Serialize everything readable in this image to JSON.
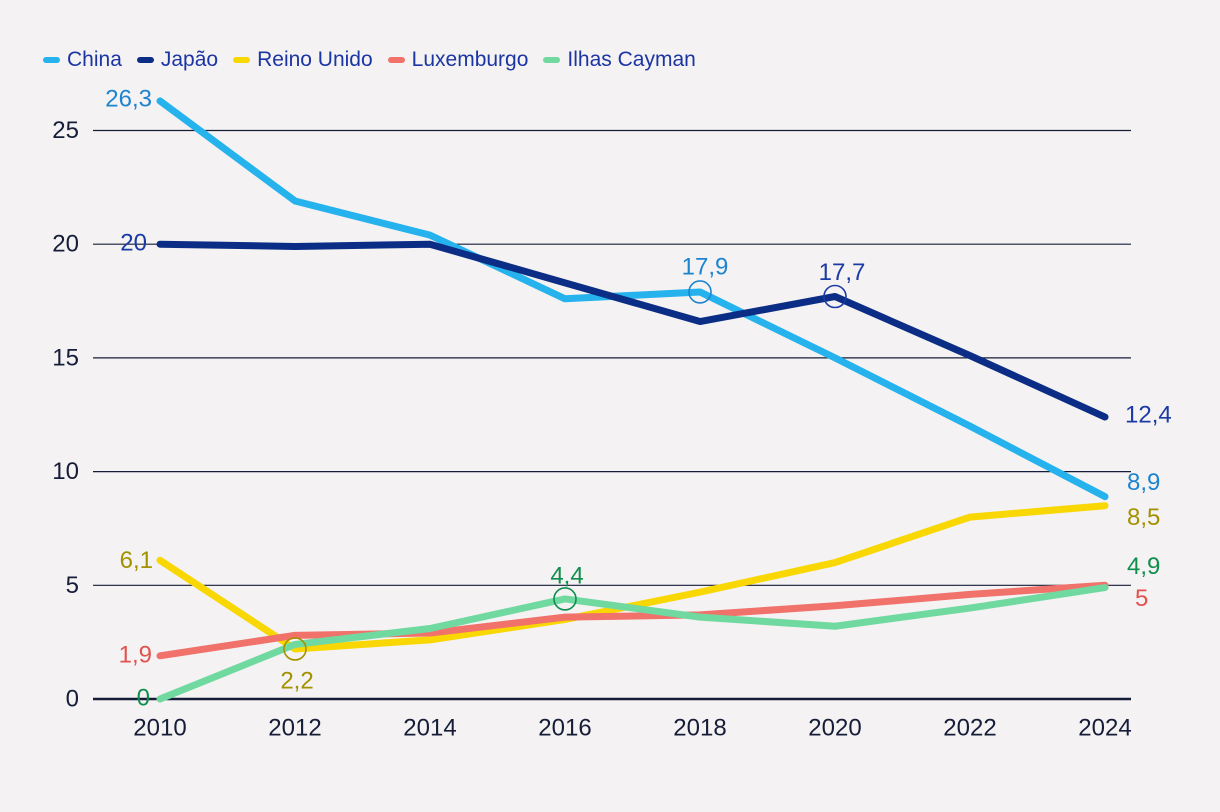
{
  "legend": {
    "items": [
      {
        "label": "China",
        "color": "#25b2ed"
      },
      {
        "label": "Japão",
        "color": "#0b2d85"
      },
      {
        "label": "Reino Unido",
        "color": "#f8d703"
      },
      {
        "label": "Luxemburgo",
        "color": "#f0726b"
      },
      {
        "label": "Ilhas Cayman",
        "color": "#70d9a0"
      }
    ],
    "text_color": "#1b35a3"
  },
  "colors": {
    "background": "#f4f2f2",
    "grid": "#161d38",
    "axis": "#161d38",
    "tick_text": "#161d38"
  },
  "chart_data": {
    "type": "line",
    "x": [
      2010,
      2012,
      2014,
      2016,
      2018,
      2020,
      2022,
      2024
    ],
    "x_tick_labels": [
      "2010",
      "2012",
      "2014",
      "2016",
      "2018",
      "2020",
      "2022",
      "2024"
    ],
    "y_ticks": [
      0,
      5,
      10,
      15,
      20,
      25
    ],
    "y_tick_labels": [
      "0",
      "5",
      "10",
      "15",
      "20",
      "25"
    ],
    "ylim": [
      0,
      27.7
    ],
    "grid": "horizontal",
    "legend_position": "top-left",
    "decimal_separator": ",",
    "series": [
      {
        "name": "China",
        "line_color": "#25b2ed",
        "label_color": "#1d84cf",
        "values": [
          26.3,
          21.9,
          20.4,
          17.6,
          17.9,
          15.0,
          12.0,
          8.9
        ],
        "labeled_points": [
          {
            "year": 2010,
            "value": 26.3,
            "text": "26,3",
            "anchor": "end",
            "dx": -8,
            "dy": -2,
            "circle": false
          },
          {
            "year": 2018,
            "value": 17.9,
            "text": "17,9",
            "anchor": "middle",
            "dx": 5,
            "dy": -25,
            "circle": true
          },
          {
            "year": 2024,
            "value": 8.9,
            "text": "8,9",
            "anchor": "start",
            "dx": 22,
            "dy": -14,
            "circle": false
          }
        ]
      },
      {
        "name": "Japão",
        "line_color": "#0b2d85",
        "label_color": "#1c3aa5",
        "values": [
          20.0,
          19.9,
          20.0,
          18.3,
          16.6,
          17.7,
          15.1,
          12.4
        ],
        "labeled_points": [
          {
            "year": 2010,
            "value": 20.0,
            "text": "20",
            "anchor": "end",
            "dx": -13,
            "dy": -1,
            "circle": false
          },
          {
            "year": 2020,
            "value": 17.7,
            "text": "17,7",
            "anchor": "middle",
            "dx": 7,
            "dy": -24,
            "circle": true
          },
          {
            "year": 2024,
            "value": 12.4,
            "text": "12,4",
            "anchor": "start",
            "dx": 20,
            "dy": -2,
            "circle": false
          }
        ]
      },
      {
        "name": "Reino Unido",
        "line_color": "#f8d703",
        "label_color": "#a39200",
        "values": [
          6.1,
          2.2,
          2.6,
          3.5,
          4.7,
          6.0,
          8.0,
          8.5
        ],
        "labeled_points": [
          {
            "year": 2010,
            "value": 6.1,
            "text": "6,1",
            "anchor": "end",
            "dx": -7,
            "dy": 0,
            "circle": false
          },
          {
            "year": 2012,
            "value": 2.2,
            "text": "2,2",
            "anchor": "middle",
            "dx": 2,
            "dy": 32,
            "circle": true
          },
          {
            "year": 2024,
            "value": 8.5,
            "text": "8,5",
            "anchor": "start",
            "dx": 22,
            "dy": 12,
            "circle": false
          }
        ]
      },
      {
        "name": "Luxemburgo",
        "line_color": "#f0726b",
        "label_color": "#e2524e",
        "values": [
          1.9,
          2.8,
          2.9,
          3.6,
          3.7,
          4.1,
          4.6,
          5.0
        ],
        "labeled_points": [
          {
            "year": 2010,
            "value": 1.9,
            "text": "1,9",
            "anchor": "end",
            "dx": -8,
            "dy": -1,
            "circle": false
          },
          {
            "year": 2024,
            "value": 5.0,
            "text": "5",
            "anchor": "start",
            "dx": 30,
            "dy": 13,
            "circle": false
          }
        ]
      },
      {
        "name": "Ilhas Cayman",
        "line_color": "#70d9a0",
        "label_color": "#0f8f4e",
        "values": [
          0,
          2.4,
          3.1,
          4.4,
          3.6,
          3.2,
          4.0,
          4.9
        ],
        "labeled_points": [
          {
            "year": 2010,
            "value": 0,
            "text": "0",
            "anchor": "end",
            "dx": -10,
            "dy": -1,
            "circle": false
          },
          {
            "year": 2016,
            "value": 4.4,
            "text": "4,4",
            "anchor": "middle",
            "dx": 2,
            "dy": -23,
            "circle": true
          },
          {
            "year": 2024,
            "value": 4.9,
            "text": "4,9",
            "anchor": "start",
            "dx": 22,
            "dy": -21,
            "circle": false
          }
        ]
      }
    ]
  }
}
